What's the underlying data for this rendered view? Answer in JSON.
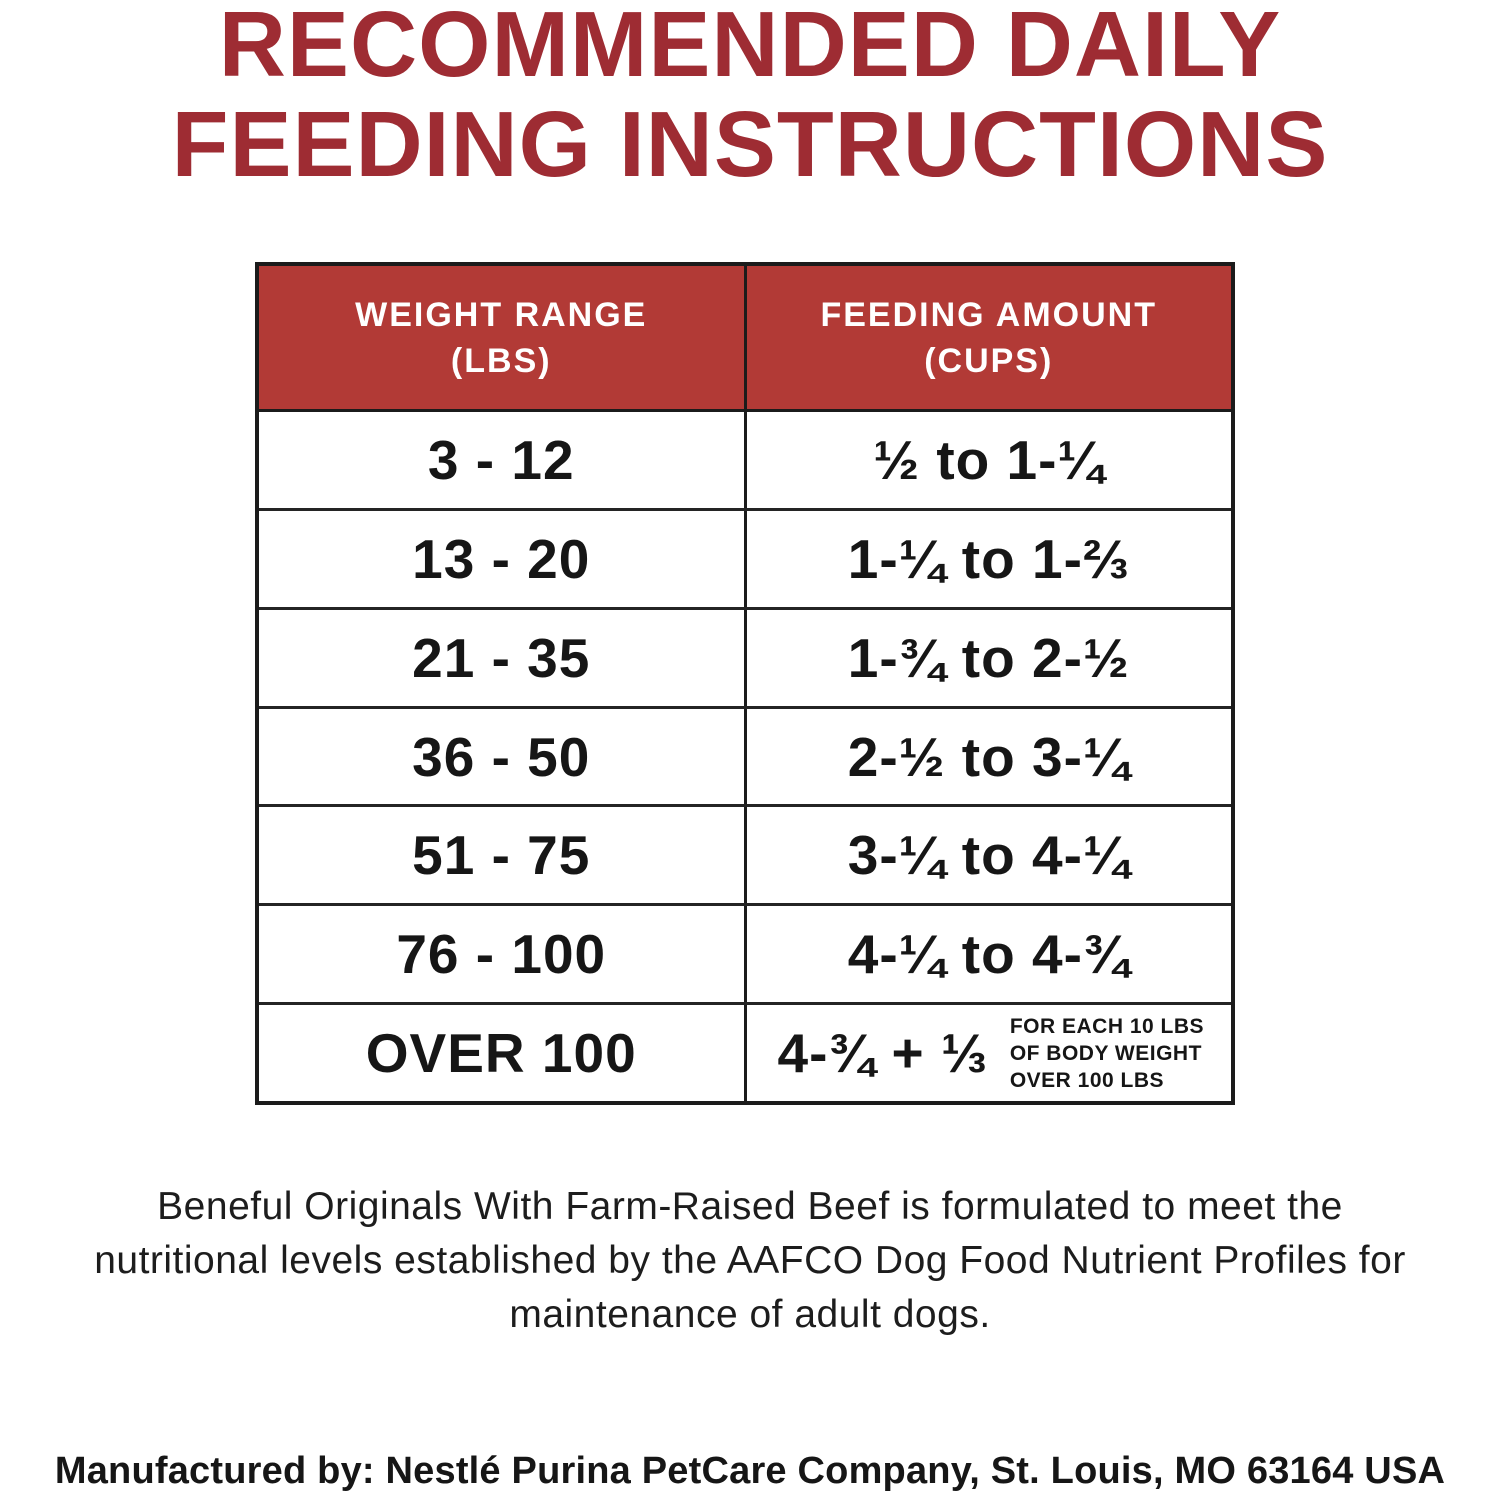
{
  "title": {
    "line1": "RECOMMENDED DAILY",
    "line2": "FEEDING INSTRUCTIONS",
    "color": "#9e2c33"
  },
  "table": {
    "header": {
      "weight_col_line1": "WEIGHT RANGE",
      "weight_col_line2": "(LBS)",
      "amount_col_line1": "FEEDING AMOUNT",
      "amount_col_line2": "(CUPS)",
      "bg_color": "#b23a36",
      "text_color": "#ffffff"
    },
    "rows": [
      {
        "weight": "3 - 12",
        "amount": "½ to 1-¼"
      },
      {
        "weight": "13 - 20",
        "amount": "1-¼ to 1-⅔"
      },
      {
        "weight": "21 - 35",
        "amount": "1-¾ to 2-½"
      },
      {
        "weight": "36 - 50",
        "amount": "2-½ to 3-¼"
      },
      {
        "weight": "51 - 75",
        "amount": "3-¼ to 4-¼"
      },
      {
        "weight": "76 - 100",
        "amount": "4-¼ to 4-¾"
      },
      {
        "weight": "OVER 100",
        "amount": "4-¾ + ⅓",
        "note_line1": "FOR EACH 10 LBS",
        "note_line2": "OF BODY WEIGHT",
        "note_line3": "OVER 100 LBS"
      }
    ]
  },
  "footer": {
    "paragraph": "Beneful Originals With Farm-Raised Beef is formulated to meet the nutritional levels established by the AAFCO Dog Food Nutrient Profiles for maintenance of adult dogs.",
    "manufacturer": "Manufactured by: Nestlé Purina PetCare Company, St. Louis, MO 63164 USA"
  }
}
